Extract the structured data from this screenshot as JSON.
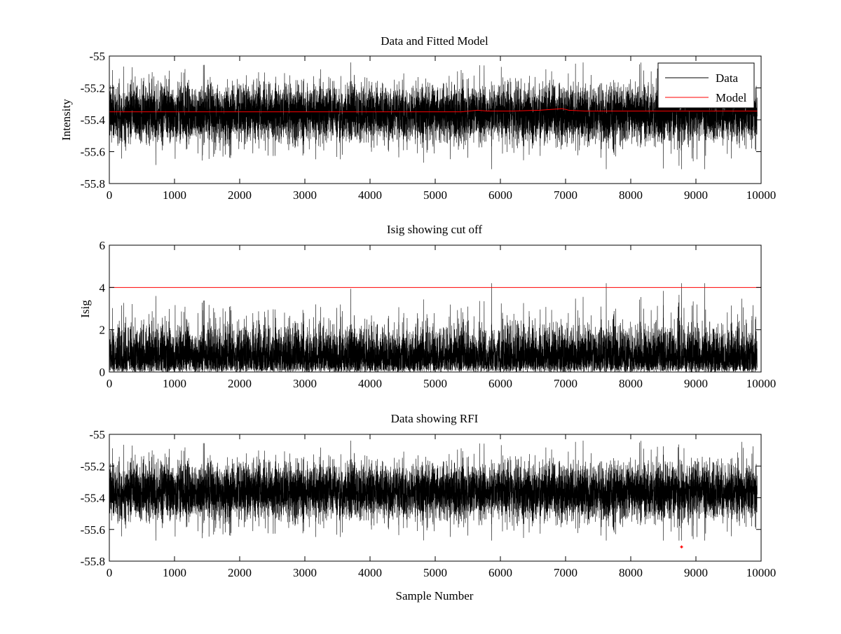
{
  "chart_data": [
    {
      "type": "line",
      "title": "Data and Fitted Model",
      "xlabel": "",
      "ylabel": "Intensity",
      "xlim": [
        0,
        10000
      ],
      "ylim": [
        -55.8,
        -55
      ],
      "xticks": [
        0,
        1000,
        2000,
        3000,
        4000,
        5000,
        6000,
        7000,
        8000,
        9000,
        10000
      ],
      "xtick_labels": [
        "0",
        "1000",
        "2000",
        "3000",
        "4000",
        "5000",
        "6000",
        "7000",
        "8000",
        "9000",
        "10000"
      ],
      "yticks": [
        -55,
        -55.2,
        -55.4,
        -55.6,
        -55.8
      ],
      "ytick_labels": [
        "-55",
        "-55.2",
        "-55.4",
        "-55.6",
        "-55.8"
      ],
      "legend": {
        "placement": "top-right",
        "entries": [
          "Data",
          "Model"
        ]
      },
      "series": [
        {
          "name": "Data",
          "color": "#000000",
          "kind": "noise",
          "n_points": 9940,
          "x_range": [
            1,
            9940
          ],
          "mean": -55.36,
          "std": 0.09,
          "min": -55.71,
          "max": -55.04,
          "seed": 7
        },
        {
          "name": "Model",
          "color": "#ff0000",
          "x": [
            0,
            2000,
            4000,
            5000,
            5400,
            5650,
            5800,
            6200,
            6600,
            6950,
            7050,
            7300,
            8000,
            8600,
            9200,
            9940
          ],
          "y": [
            -55.35,
            -55.35,
            -55.35,
            -55.35,
            -55.35,
            -55.34,
            -55.345,
            -55.345,
            -55.34,
            -55.33,
            -55.34,
            -55.345,
            -55.345,
            -55.345,
            -55.345,
            -55.345
          ]
        }
      ]
    },
    {
      "type": "line",
      "title": "Isig showing cut off",
      "xlabel": "",
      "ylabel": "Isig",
      "xlim": [
        0,
        10000
      ],
      "ylim": [
        0,
        6
      ],
      "xticks": [
        0,
        1000,
        2000,
        3000,
        4000,
        5000,
        6000,
        7000,
        8000,
        9000,
        10000
      ],
      "xtick_labels": [
        "0",
        "1000",
        "2000",
        "3000",
        "4000",
        "5000",
        "6000",
        "7000",
        "8000",
        "9000",
        "10000"
      ],
      "yticks": [
        0,
        2,
        4,
        6
      ],
      "ytick_labels": [
        "0",
        "2",
        "4",
        "6"
      ],
      "series": [
        {
          "name": "Isig",
          "color": "#000000",
          "kind": "abs-noise",
          "n_points": 9940,
          "x_range": [
            1,
            9940
          ],
          "mean": 0,
          "std": 1.0,
          "max": 4.2,
          "seed": 7
        },
        {
          "name": "Cut off",
          "color": "#ff0000",
          "x": [
            0,
            10000
          ],
          "y": [
            4,
            4
          ]
        }
      ]
    },
    {
      "type": "line",
      "title": "Data showing RFI",
      "xlabel": "Sample Number",
      "ylabel": "",
      "xlim": [
        0,
        10000
      ],
      "ylim": [
        -55.8,
        -55
      ],
      "xticks": [
        0,
        1000,
        2000,
        3000,
        4000,
        5000,
        6000,
        7000,
        8000,
        9000,
        10000
      ],
      "xtick_labels": [
        "0",
        "1000",
        "2000",
        "3000",
        "4000",
        "5000",
        "6000",
        "7000",
        "8000",
        "9000",
        "10000"
      ],
      "yticks": [
        -55,
        -55.2,
        -55.4,
        -55.6,
        -55.8
      ],
      "ytick_labels": [
        "-55",
        "-55.2",
        "-55.4",
        "-55.6",
        "-55.8"
      ],
      "series": [
        {
          "name": "Data",
          "color": "#000000",
          "kind": "noise",
          "n_points": 9940,
          "x_range": [
            1,
            9940
          ],
          "mean": -55.36,
          "std": 0.09,
          "min": -55.67,
          "max": -55.04,
          "seed": 7
        },
        {
          "name": "RFI",
          "color": "#ff0000",
          "kind": "markers",
          "x": [
            8780
          ],
          "y": [
            -55.71
          ]
        }
      ]
    }
  ]
}
